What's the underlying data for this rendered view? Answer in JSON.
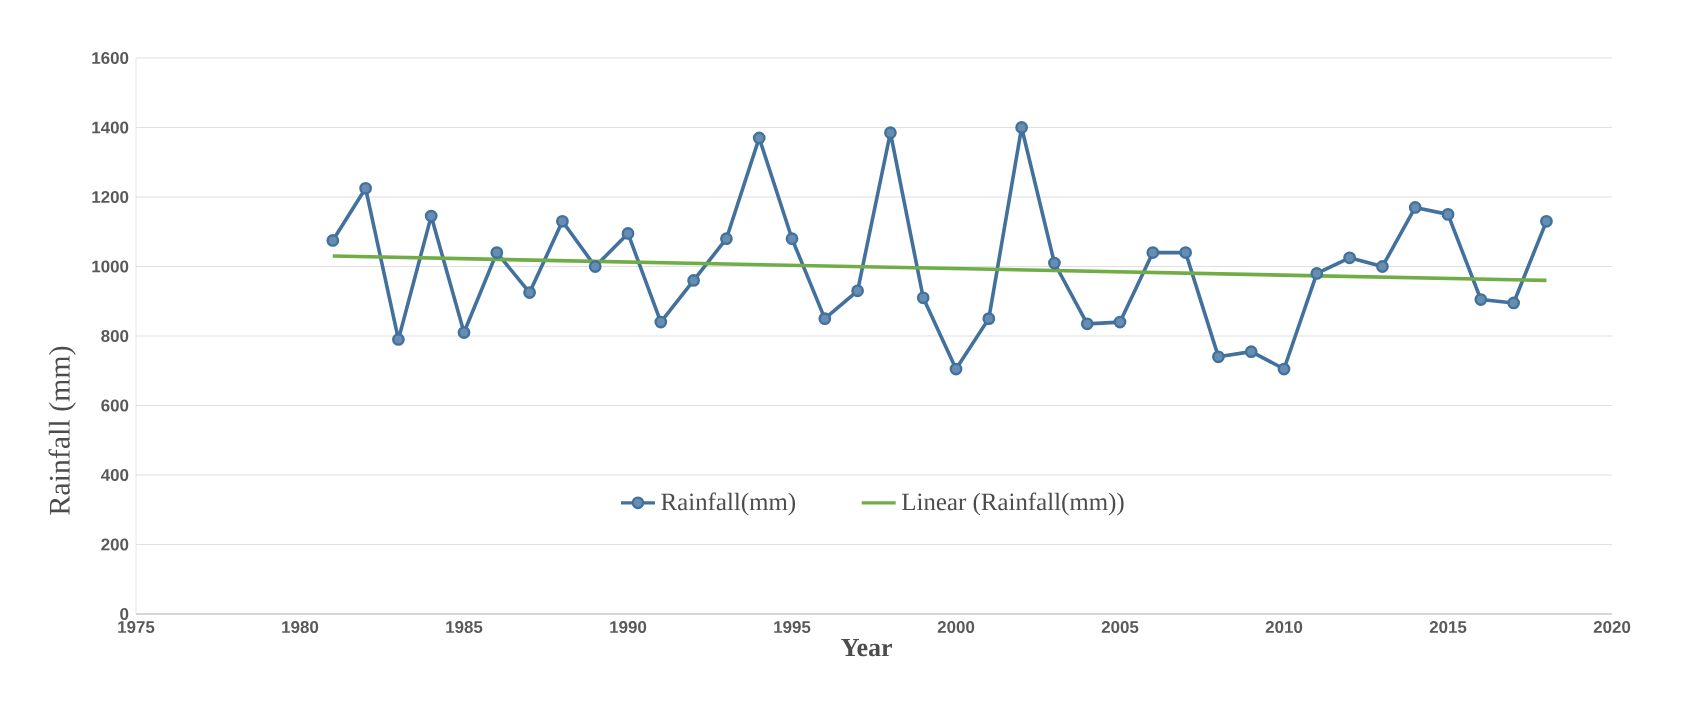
{
  "chart_data": {
    "type": "line",
    "xlabel": "Year",
    "ylabel": "Rainfall (mm)",
    "x": [
      1981,
      1982,
      1983,
      1984,
      1985,
      1986,
      1987,
      1988,
      1989,
      1990,
      1991,
      1992,
      1993,
      1994,
      1995,
      1996,
      1997,
      1998,
      1999,
      2000,
      2001,
      2002,
      2003,
      2004,
      2005,
      2006,
      2007,
      2008,
      2009,
      2010,
      2011,
      2012,
      2013,
      2014,
      2015,
      2016,
      2017,
      2018
    ],
    "series": [
      {
        "name": "Rainfall(mm)",
        "color": "#41719c",
        "marker": "circle",
        "values": [
          1075,
          1225,
          790,
          1145,
          810,
          1040,
          925,
          1130,
          1000,
          1095,
          840,
          960,
          1080,
          1370,
          1080,
          850,
          930,
          1385,
          910,
          705,
          850,
          1400,
          1010,
          835,
          840,
          1040,
          1040,
          740,
          755,
          705,
          980,
          1025,
          1000,
          1170,
          1150,
          905,
          895,
          1130
        ]
      },
      {
        "name": "Linear (Rainfall(mm))",
        "color": "#70ad47",
        "marker": "none",
        "x": [
          1981,
          2018
        ],
        "values": [
          1030,
          960
        ]
      }
    ],
    "xlim": [
      1975,
      2020
    ],
    "xticks": [
      1975,
      1980,
      1985,
      1990,
      1995,
      2000,
      2005,
      2010,
      2015,
      2020
    ],
    "ylim": [
      0,
      1600
    ],
    "yticks": [
      0,
      200,
      400,
      600,
      800,
      1000,
      1200,
      1400,
      1600
    ],
    "grid": "y",
    "legend": "bottom"
  }
}
